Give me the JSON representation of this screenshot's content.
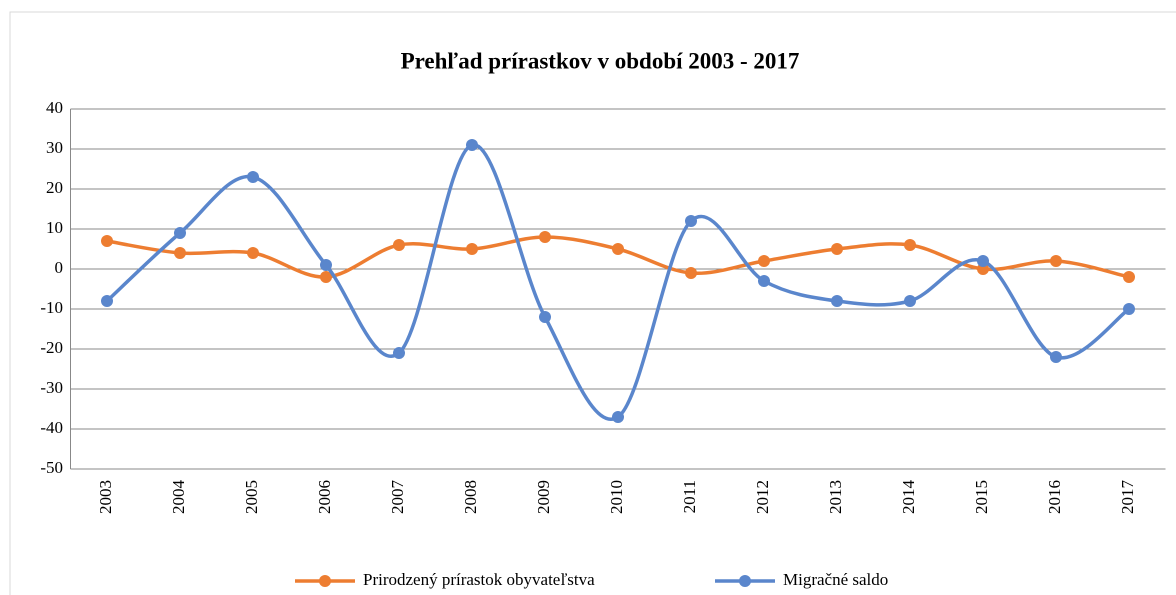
{
  "chart_data": {
    "type": "line",
    "title": "Prehľad prírastkov v období 2003 - 2017",
    "categories": [
      "2003",
      "2004",
      "2005",
      "2006",
      "2007",
      "2008",
      "2009",
      "2010",
      "2011",
      "2012",
      "2013",
      "2014",
      "2015",
      "2016",
      "2017"
    ],
    "series": [
      {
        "name": "Prirodzený prírastok obyvateľstva",
        "color": "#ed7d31",
        "values": [
          7,
          4,
          4,
          -2,
          6,
          5,
          8,
          5,
          -1,
          2,
          5,
          6,
          0,
          2,
          -2
        ]
      },
      {
        "name": "Migračné saldo",
        "color": "#5a86cc",
        "values": [
          -8,
          9,
          23,
          1,
          -21,
          31,
          -12,
          -37,
          12,
          -3,
          -8,
          -8,
          2,
          -22,
          -10
        ]
      }
    ],
    "ylim": [
      -50,
      40
    ],
    "yticks": [
      -50,
      -40,
      -30,
      -20,
      -10,
      0,
      10,
      20,
      30,
      40
    ],
    "grid": true,
    "smooth": true,
    "legend": "bottom"
  }
}
